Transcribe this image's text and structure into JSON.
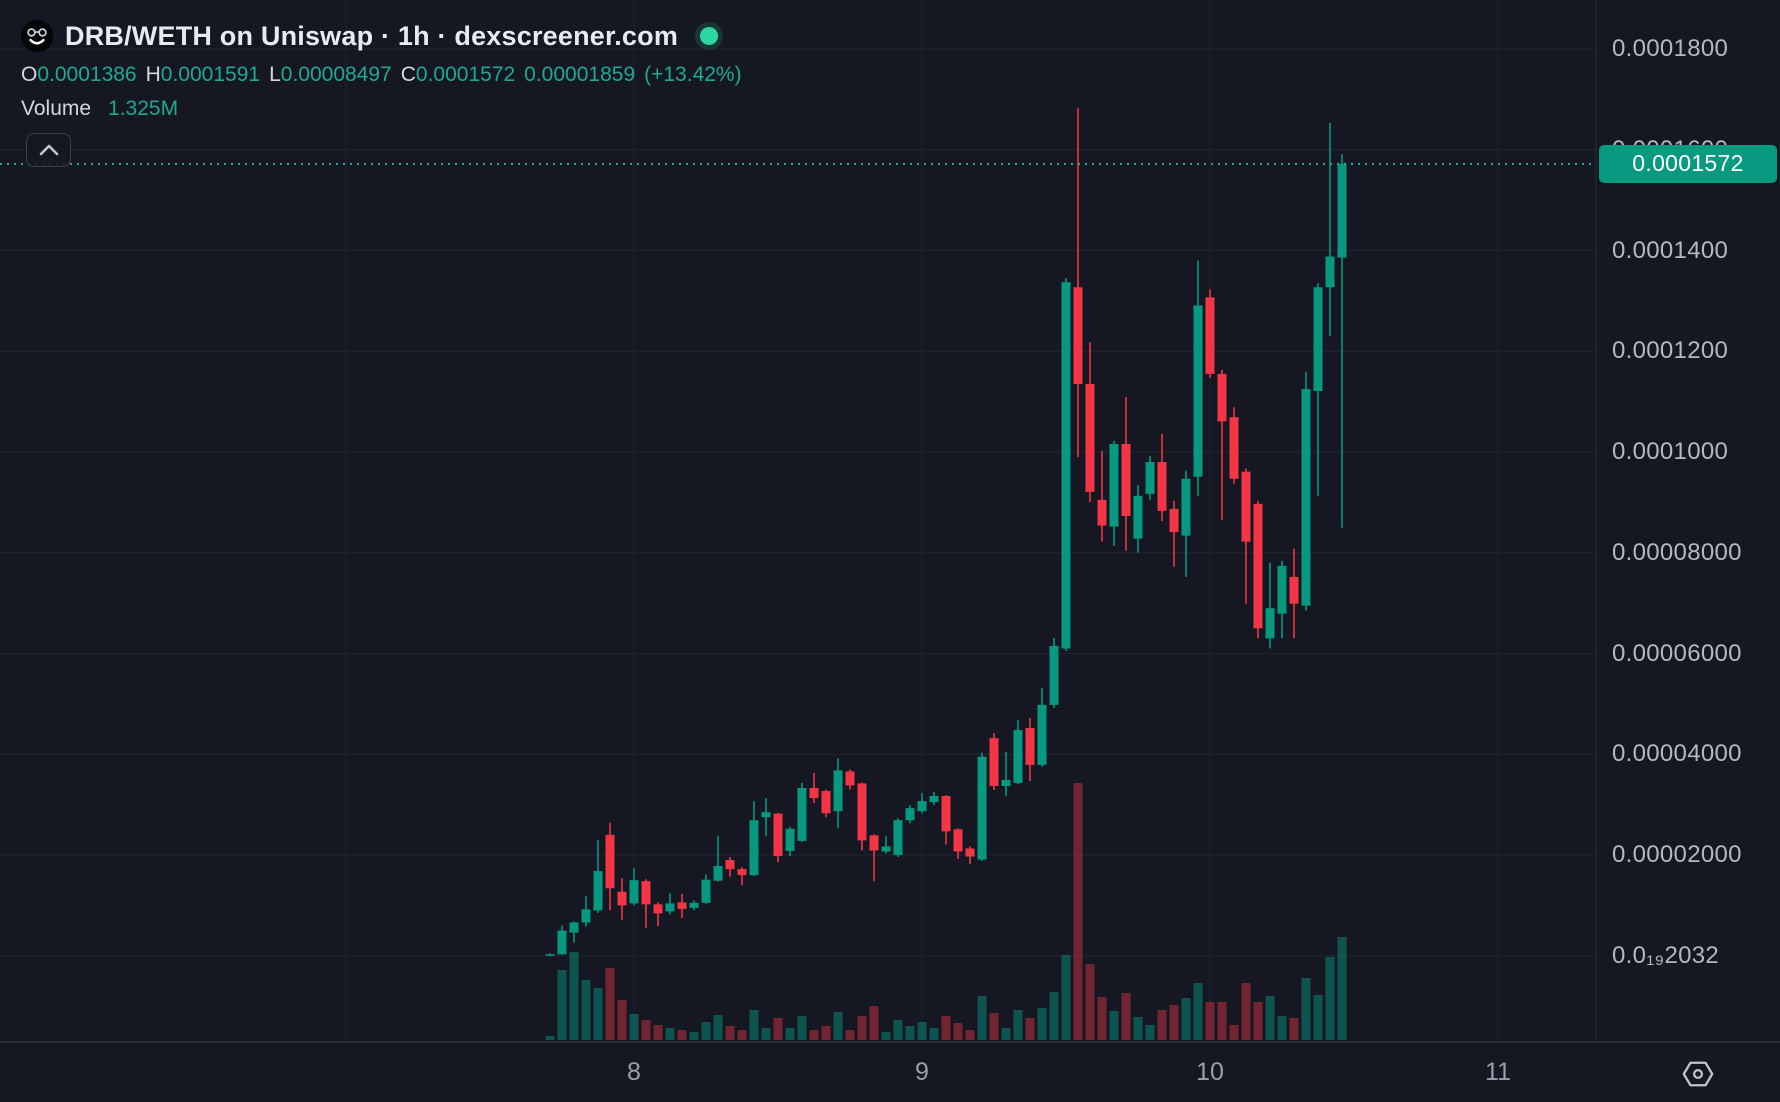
{
  "header": {
    "title": "DRB/WETH on Uniswap · 1h · dexscreener.com",
    "legend": [
      {
        "k": "O",
        "v": "0.0001386"
      },
      {
        "k": "H",
        "v": "0.0001591"
      },
      {
        "k": "L",
        "v": "0.00008497"
      },
      {
        "k": "C",
        "v": "0.0001572"
      }
    ],
    "change_abs": "0.00001859",
    "change_pct": "(+13.42%)",
    "volume_label": "Volume",
    "volume_value": "1.325M"
  },
  "toolbar": {
    "collapse_button": "chevron-up"
  },
  "price_scale": {
    "ticks": [
      {
        "label": "0.0001800",
        "value": 0.00018
      },
      {
        "label": "0.0001600",
        "value": 0.00016
      },
      {
        "label": "0.0001400",
        "value": 0.00014
      },
      {
        "label": "0.0001200",
        "value": 0.00012
      },
      {
        "label": "0.0001000",
        "value": 0.0001
      },
      {
        "label": "0.00008000",
        "value": 8e-05
      },
      {
        "label": "0.00006000",
        "value": 6e-05
      },
      {
        "label": "0.00004000",
        "value": 4e-05
      },
      {
        "label": "0.00002000",
        "value": 2e-05
      },
      {
        "label": "0.0₁₉2032",
        "value": 0
      }
    ],
    "last_price_label": "0.0001572"
  },
  "time_scale": {
    "ticks": [
      {
        "label": "",
        "index": -17
      },
      {
        "label": "8",
        "index": 7
      },
      {
        "label": "9",
        "index": 31
      },
      {
        "label": "10",
        "index": 55
      },
      {
        "label": "11",
        "index": 79
      }
    ]
  },
  "chart_data": {
    "type": "candlestick",
    "title": "DRB/WETH on Uniswap · 1h · dexscreener.com",
    "pair": "DRB/WETH",
    "venue": "Uniswap",
    "interval": "1h",
    "source": "dexscreener.com",
    "legend_note": "volume pane overlaid at bottom, heights in px",
    "last_price": 0.0001572,
    "ylim": [
      0,
      0.00018
    ],
    "grid": true,
    "candles_format": [
      "open",
      "high",
      "low",
      "close",
      "volume_px"
    ],
    "candles": [
      [
        2.5e-07,
        5e-07,
        2e-07,
        2.8e-07,
        4
      ],
      [
        3e-07,
        6e-06,
        2e-07,
        5e-06,
        70
      ],
      [
        4.6e-06,
        6.8e-06,
        2.6e-06,
        6.6e-06,
        88
      ],
      [
        6.6e-06,
        1.19e-05,
        5.8e-06,
        9.2e-06,
        60
      ],
      [
        9e-06,
        2.3e-05,
        8.5e-06,
        1.68e-05,
        52
      ],
      [
        2.4e-05,
        2.64e-05,
        9e-06,
        1.34e-05,
        72
      ],
      [
        1.27e-05,
        1.54e-05,
        7.1e-06,
        1e-05,
        40
      ],
      [
        1.04e-05,
        1.74e-05,
        1e-05,
        1.5e-05,
        26
      ],
      [
        1.48e-05,
        1.52e-05,
        5.5e-06,
        1.02e-05,
        20
      ],
      [
        1.02e-05,
        1.06e-05,
        5.9e-06,
        8.4e-06,
        15
      ],
      [
        8.8e-06,
        1.24e-05,
        8.2e-06,
        1.04e-05,
        12
      ],
      [
        1.06e-05,
        1.23e-05,
        7.5e-06,
        9.3e-06,
        10
      ],
      [
        9.5e-06,
        1.1e-05,
        9e-06,
        1.05e-05,
        8
      ],
      [
        1.05e-05,
        1.61e-05,
        1.03e-05,
        1.51e-05,
        18
      ],
      [
        1.49e-05,
        2.38e-05,
        1.47e-05,
        1.78e-05,
        25
      ],
      [
        1.9e-05,
        1.96e-05,
        1.57e-05,
        1.72e-05,
        14
      ],
      [
        1.72e-05,
        1.76e-05,
        1.4e-05,
        1.6e-05,
        10
      ],
      [
        1.6e-05,
        3.07e-05,
        1.58e-05,
        2.69e-05,
        30
      ],
      [
        2.75e-05,
        3.13e-05,
        2.37e-05,
        2.85e-05,
        12
      ],
      [
        2.82e-05,
        2.84e-05,
        1.86e-05,
        1.98e-05,
        22
      ],
      [
        2.08e-05,
        2.56e-05,
        1.98e-05,
        2.52e-05,
        12
      ],
      [
        2.28e-05,
        3.43e-05,
        2.26e-05,
        3.33e-05,
        24
      ],
      [
        3.33e-05,
        3.63e-05,
        3.03e-05,
        3.13e-05,
        10
      ],
      [
        3.27e-05,
        3.3e-05,
        2.75e-05,
        2.83e-05,
        14
      ],
      [
        2.87e-05,
        3.92e-05,
        2.53e-05,
        3.68e-05,
        28
      ],
      [
        3.66e-05,
        3.7e-05,
        3.3e-05,
        3.38e-05,
        10
      ],
      [
        3.42e-05,
        3.44e-05,
        2.09e-05,
        2.29e-05,
        24
      ],
      [
        2.39e-05,
        2.41e-05,
        1.48e-05,
        2.09e-05,
        34
      ],
      [
        2.07e-05,
        2.37e-05,
        2.03e-05,
        2.17e-05,
        8
      ],
      [
        2e-05,
        2.73e-05,
        1.96e-05,
        2.69e-05,
        20
      ],
      [
        2.69e-05,
        2.99e-05,
        2.63e-05,
        2.93e-05,
        14
      ],
      [
        2.87e-05,
        3.23e-05,
        2.83e-05,
        3.07e-05,
        18
      ],
      [
        3.05e-05,
        3.25e-05,
        2.99e-05,
        3.17e-05,
        12
      ],
      [
        3.17e-05,
        3.19e-05,
        2.21e-05,
        2.47e-05,
        24
      ],
      [
        2.51e-05,
        2.53e-05,
        1.92e-05,
        2.07e-05,
        17
      ],
      [
        2.13e-05,
        2.17e-05,
        1.82e-05,
        1.97e-05,
        10
      ],
      [
        1.91e-05,
        4.03e-05,
        1.88e-05,
        3.95e-05,
        44
      ],
      [
        4.32e-05,
        4.42e-05,
        3.29e-05,
        3.37e-05,
        27
      ],
      [
        3.37e-05,
        4.05e-05,
        3.17e-05,
        3.49e-05,
        12
      ],
      [
        3.43e-05,
        4.68e-05,
        3.41e-05,
        4.48e-05,
        30
      ],
      [
        4.52e-05,
        4.72e-05,
        3.47e-05,
        3.79e-05,
        22
      ],
      [
        3.79e-05,
        5.32e-05,
        3.75e-05,
        4.98e-05,
        32
      ],
      [
        4.98e-05,
        6.31e-05,
        4.92e-05,
        6.15e-05,
        48
      ],
      [
        6.1e-05,
        0.0001345,
        6.05e-05,
        0.0001337,
        85
      ],
      [
        0.0001327,
        0.0001683,
        9.9e-05,
        0.0001135,
        257
      ],
      [
        0.0001135,
        0.0001218,
        9.01e-05,
        9.21e-05,
        76
      ],
      [
        9.05e-05,
        0.0001002,
        8.22e-05,
        8.54e-05,
        43
      ],
      [
        8.52e-05,
        0.0001022,
        8.14e-05,
        0.0001016,
        29
      ],
      [
        0.0001016,
        0.0001109,
        8.04e-05,
        8.73e-05,
        47
      ],
      [
        8.28e-05,
        9.34e-05,
        8e-05,
        9.13e-05,
        23
      ],
      [
        9.17e-05,
        9.92e-05,
        9.05e-05,
        9.8e-05,
        15
      ],
      [
        9.8e-05,
        0.0001036,
        8.63e-05,
        8.83e-05,
        30
      ],
      [
        8.87e-05,
        9.03e-05,
        7.72e-05,
        8.41e-05,
        35
      ],
      [
        8.34e-05,
        9.63e-05,
        7.52e-05,
        9.47e-05,
        42
      ],
      [
        9.51e-05,
        0.000138,
        9.13e-05,
        0.0001291,
        57
      ],
      [
        0.0001307,
        0.0001323,
        0.0001147,
        0.0001155,
        38
      ],
      [
        0.0001155,
        0.0001163,
        8.65e-05,
        0.0001061,
        38
      ],
      [
        0.0001069,
        0.0001089,
        9.37e-05,
        9.47e-05,
        15
      ],
      [
        9.61e-05,
        9.67e-05,
        6.99e-05,
        8.22e-05,
        57
      ],
      [
        8.97e-05,
        9.03e-05,
        6.3e-05,
        6.5e-05,
        38
      ],
      [
        6.3e-05,
        7.8e-05,
        6.1e-05,
        6.9e-05,
        44
      ],
      [
        6.79e-05,
        7.84e-05,
        6.3e-05,
        7.74e-05,
        24
      ],
      [
        7.52e-05,
        8.08e-05,
        6.3e-05,
        6.99e-05,
        22
      ],
      [
        6.95e-05,
        0.0001159,
        6.85e-05,
        0.0001125,
        62
      ],
      [
        0.0001121,
        0.0001335,
        9.13e-05,
        0.0001327,
        45
      ],
      [
        0.0001327,
        0.0001653,
        0.000123,
        0.0001388,
        83
      ],
      [
        0.0001386,
        0.0001591,
        8.497e-05,
        0.0001572,
        103
      ]
    ],
    "day_tick_candle_indices": {
      "8": 7,
      "9": 31,
      "10": 55,
      "11": 79
    }
  },
  "colors": {
    "background": "#151823",
    "grid": "#1f2430",
    "axis_border": "#262b39",
    "up": "#089981",
    "down": "#f23645",
    "up_volume": "rgba(8,153,129,0.48)",
    "down_volume": "rgba(242,54,69,0.42)",
    "badge_bg": "#089981",
    "dotted_line": "#1fae93",
    "status_dot": "#2bd6a0",
    "axis_text": "#b4b8c5",
    "time_text": "#9a9eab"
  },
  "icons": {
    "settings": "hexagon-gear",
    "logo": "masked-face"
  }
}
